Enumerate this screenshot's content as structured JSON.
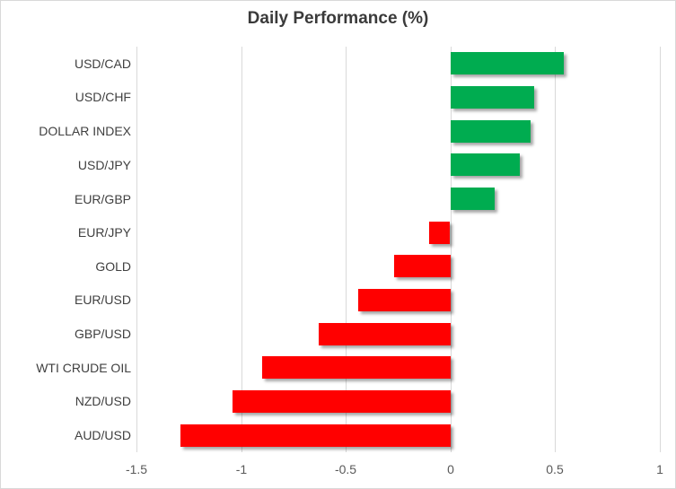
{
  "chart_data": {
    "type": "bar",
    "orientation": "horizontal",
    "title": "Daily Performance (%)",
    "categories": [
      "USD/CAD",
      "USD/CHF",
      "DOLLAR INDEX",
      "USD/JPY",
      "EUR/GBP",
      "EUR/JPY",
      "GOLD",
      "EUR/USD",
      "GBP/USD",
      "WTI CRUDE OIL",
      "NZD/USD",
      "AUD/USD"
    ],
    "values": [
      0.54,
      0.4,
      0.38,
      0.33,
      0.21,
      -0.1,
      -0.27,
      -0.44,
      -0.63,
      -0.9,
      -1.04,
      -1.29
    ],
    "xlim": [
      -1.5,
      1.0
    ],
    "x_ticks": [
      -1.5,
      -1,
      -0.5,
      0,
      0.5,
      1
    ],
    "x_tick_labels": [
      "-1.5",
      "-1",
      "-0.5",
      "0",
      "0.5",
      "1"
    ],
    "grid": "vertical-gridlines",
    "legend": "none",
    "colors": {
      "positive": "#00AC50",
      "negative": "#FF0000",
      "gridline": "#D9D9D9",
      "border": "#D9D9D9",
      "title": "#3A3A3A",
      "category_labels": "#404040",
      "tick_labels": "#595959",
      "background": "#FFFFFF"
    }
  }
}
